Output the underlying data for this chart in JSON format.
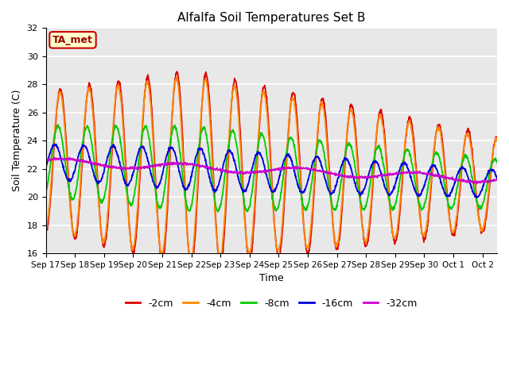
{
  "title": "Alfalfa Soil Temperatures Set B",
  "xlabel": "Time",
  "ylabel": "Soil Temperature (C)",
  "ylim": [
    16,
    32
  ],
  "xlim": [
    0,
    15.5
  ],
  "background_color": "#e8e8e8",
  "grid_color": "white",
  "annotation_text": "TA_met",
  "annotation_bg": "#ffffcc",
  "annotation_border": "#cc0000",
  "xtick_labels": [
    "Sep 17",
    "Sep 18",
    "Sep 19",
    "Sep 20",
    "Sep 21",
    "Sep 22",
    "Sep 23",
    "Sep 24",
    "Sep 25",
    "Sep 26",
    "Sep 27",
    "Sep 28",
    "Sep 29",
    "Sep 30",
    "Oct 1",
    "Oct 2"
  ],
  "legend_colors": [
    "#dd0000",
    "#ff8800",
    "#00cc00",
    "#0000dd",
    "#cc00cc"
  ],
  "legend_labels": [
    "-2cm",
    "-4cm",
    "-8cm",
    "-16cm",
    "-32cm"
  ]
}
